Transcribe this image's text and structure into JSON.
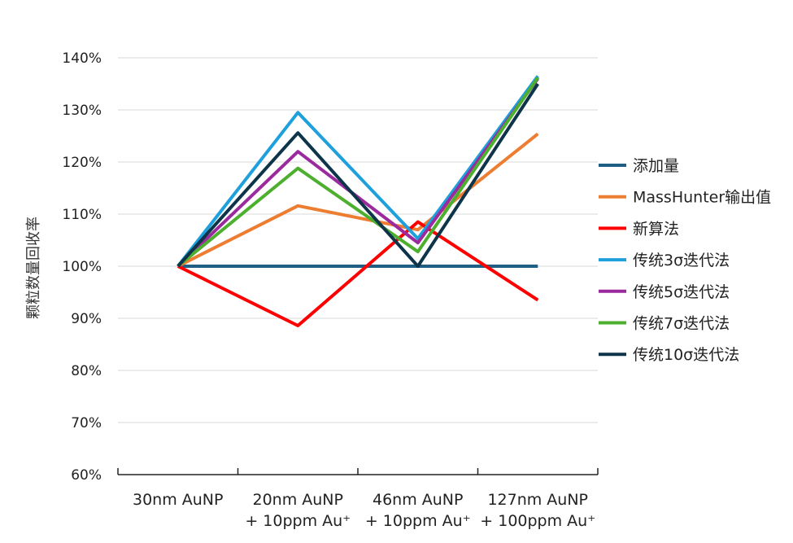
{
  "chart_data": {
    "type": "line",
    "ylabel": "颗粒数量回收率",
    "xlabel": "",
    "title": "",
    "ylim": [
      0.6,
      1.4
    ],
    "yticks": [
      0.6,
      0.7,
      0.8,
      0.9,
      1.0,
      1.1,
      1.2,
      1.3,
      1.4
    ],
    "ytick_labels": [
      "60%",
      "70%",
      "80%",
      "90%",
      "100%",
      "110%",
      "120%",
      "130%",
      "140%"
    ],
    "grid": true,
    "legend": "right",
    "categories": [
      [
        "30nm AuNP"
      ],
      [
        "20nm AuNP",
        "+ 10ppm Au⁺"
      ],
      [
        "46nm AuNP",
        "+ 10ppm Au⁺"
      ],
      [
        "127nm AuNP",
        "+ 100ppm Au⁺"
      ]
    ],
    "series": [
      {
        "name": "添加量",
        "color": "#1f5f84",
        "values": [
          1.0,
          1.0,
          1.0,
          1.0
        ]
      },
      {
        "name": "MassHunter输出值",
        "color": "#ed7d31",
        "values": [
          1.0,
          1.116,
          1.07,
          1.254
        ]
      },
      {
        "name": "新算法",
        "color": "#ff0000",
        "values": [
          1.0,
          0.886,
          1.085,
          0.935
        ]
      },
      {
        "name": "传统3σ迭代法",
        "color": "#1ea0dc",
        "values": [
          1.0,
          1.295,
          1.053,
          1.365
        ]
      },
      {
        "name": "传统5σ迭代法",
        "color": "#9a2a9e",
        "values": [
          1.0,
          1.22,
          1.045,
          1.36
        ]
      },
      {
        "name": "传统7σ迭代法",
        "color": "#4caf2e",
        "values": [
          1.0,
          1.188,
          1.028,
          1.362
        ]
      },
      {
        "name": "传统10σ迭代法",
        "color": "#0d3448",
        "values": [
          1.0,
          1.256,
          1.0,
          1.35
        ]
      }
    ]
  }
}
